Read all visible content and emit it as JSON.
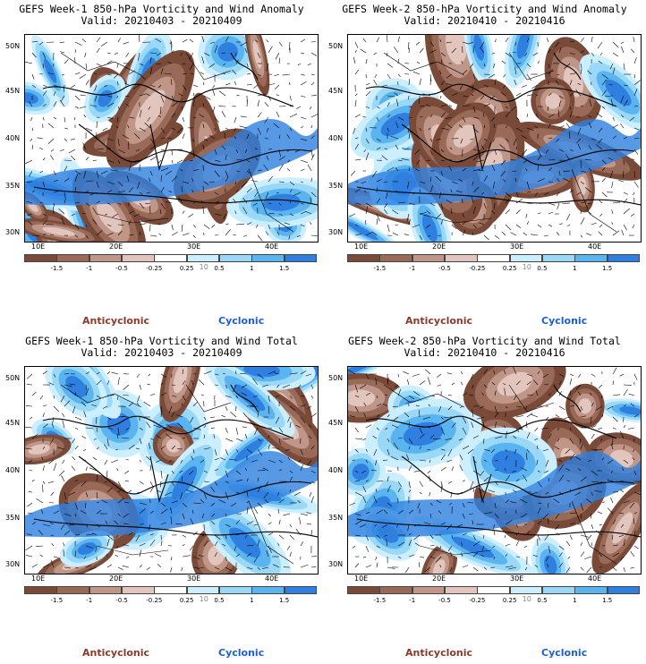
{
  "panels": [
    {
      "title_line1": "GEFS Week-1 850-hPa Vorticity and Wind Anomaly",
      "title_line2": "Valid: 20210403 - 20210409",
      "variant": 1
    },
    {
      "title_line1": "GEFS Week-2 850-hPa Vorticity and Wind Anomaly",
      "title_line2": "Valid: 20210410 - 20210416",
      "variant": 2
    },
    {
      "title_line1": "GEFS Week-1 850-hPa Vorticity and Wind Total",
      "title_line2": "Valid: 20210403 - 20210409",
      "variant": 3
    },
    {
      "title_line1": "GEFS Week-2 850-hPa Vorticity and Wind Total",
      "title_line2": "Valid: 20210410 - 20210416",
      "variant": 4
    }
  ],
  "lat_labels": [
    "50N",
    "45N",
    "40N",
    "35N",
    "30N"
  ],
  "lon_labels": [
    "10E",
    "20E",
    "30E",
    "40E"
  ],
  "colorbar": {
    "ticks": [
      "-1.5",
      "-1",
      "-0.5",
      "-0.25",
      "0.25",
      "0.5",
      "1",
      "1.5"
    ],
    "colors": [
      "#7a4a38",
      "#9a6a58",
      "#c09688",
      "#e2c6be",
      "#ffffff",
      "#ccefff",
      "#9ad8f8",
      "#5ab4f0",
      "#2e7fe0"
    ],
    "mid_mark": "10"
  },
  "legend": {
    "anticyclonic": "Anticyclonic",
    "cyclonic": "Cyclonic",
    "anticyclonic_color": "#8b3a2a",
    "cyclonic_color": "#1a5fd6"
  }
}
